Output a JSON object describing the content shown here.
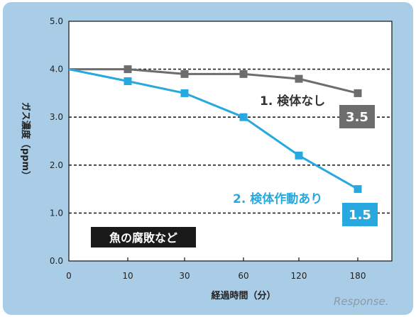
{
  "chart_data": {
    "type": "line",
    "xlabel": "経過時間（分）",
    "ylabel": "ガス濃度（ppm）",
    "categories": [
      "0",
      "10",
      "30",
      "60",
      "120",
      "180"
    ],
    "ylim": [
      0,
      5
    ],
    "yticks": [
      "0.0",
      "1.0",
      "2.0",
      "3.0",
      "4.0",
      "5.0"
    ],
    "grid": "horizontal dashed",
    "series": [
      {
        "name": "1. 検体なし",
        "values": [
          4.0,
          4.0,
          3.9,
          3.9,
          3.8,
          3.5
        ],
        "color": "#6d6d6d",
        "end_label": "3.5"
      },
      {
        "name": "2. 検体作動あり",
        "values": [
          4.0,
          3.75,
          3.5,
          3.0,
          2.2,
          1.5
        ],
        "color": "#27a8df",
        "end_label": "1.5"
      }
    ],
    "annotation": "魚の腐敗など"
  },
  "colors": {
    "frame": "#a9cde6",
    "plot_background": "#ffffff",
    "grid": "#222222"
  },
  "watermark": "Response."
}
